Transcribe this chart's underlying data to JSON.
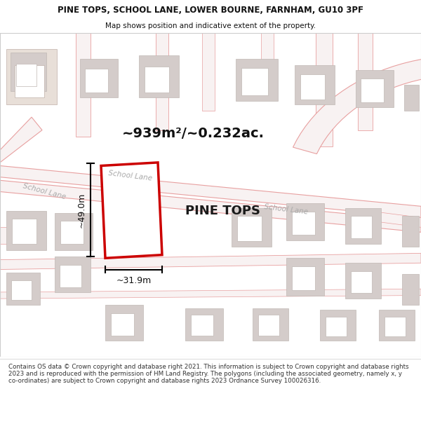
{
  "title_line1": "PINE TOPS, SCHOOL LANE, LOWER BOURNE, FARNHAM, GU10 3PF",
  "title_line2": "Map shows position and indicative extent of the property.",
  "area_label": "~939m²/~0.232ac.",
  "property_label": "PINE TOPS",
  "width_label": "~31.9m",
  "height_label": "~49.0m",
  "school_lane_label1": "School Lane",
  "school_lane_label2": "School Lane",
  "footer_text": "Contains OS data © Crown copyright and database right 2021. This information is subject to Crown copyright and database rights 2023 and is reproduced with the permission of HM Land Registry. The polygons (including the associated geometry, namely x, y co-ordinates) are subject to Crown copyright and database rights 2023 Ordnance Survey 100026316.",
  "map_bg": "#ffffff",
  "road_color": "#e8a0a0",
  "road_fill": "#f5eded",
  "building_fill": "#d4ccca",
  "building_edge": "#c0b8b4",
  "property_color": "#cc0000",
  "text_color": "#111111",
  "road_label_color": "#aaaaaa",
  "footer_bg": "#ffffff",
  "title_bg": "#ffffff",
  "map_border": "#cccccc"
}
